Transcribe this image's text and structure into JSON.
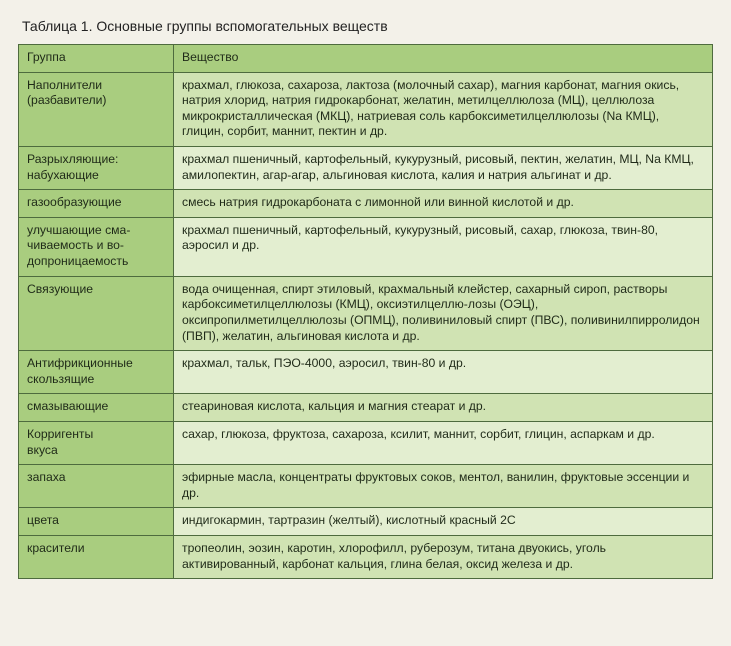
{
  "caption": "Таблица 1. Основные группы вспомогательных веществ",
  "headers": {
    "group": "Группа",
    "substance": "Вещество"
  },
  "rows": {
    "fillers": {
      "group_html": "<span class='lead'>Наполнители</span><span class='sub'>(разбавители)</span>",
      "substance": "крахмал, глюкоза, сахароза, лактоза (молочный сахар), магния карбонат, магния окись, натрия хлорид, натрия гидрокарбонат, желатин, метилцеллюлоза (МЦ), целлюлоза микрокристаллическая (МКЦ), натриевая соль карбоксиметилцеллюлозы (Na КМЦ), глицин, сорбит, маннит, пектин и др."
    },
    "disint_head": {
      "group_html": "<span class='lead'>Разрыхляющие:</span><span class='sub'>набухающие</span>",
      "substance": "крахмал пшеничный, картофельный, кукурузный, рисовый, пектин, желатин, МЦ, Na КМЦ, амилопектин, агар-агар, альгиновая кислота, калия и натрия альгинат и др."
    },
    "disint_gas": {
      "group": "газообразующие",
      "substance": "смесь натрия гидрокарбоната с лимонной или винной кислотой и др."
    },
    "disint_wet": {
      "group_html": "улучшающие сма-<br>чиваемость и во-<br>допроницаемость",
      "substance": "крахмал пшеничный, картофельный, кукурузный, рисовый, сахар, глюкоза, твин-80, аэросил и др."
    },
    "binders": {
      "group": "Связующие",
      "substance": "вода очищенная, спирт этиловый, крахмальный клейстер, сахарный сироп, растворы карбоксиметилцеллюлозы (КМЦ), оксиэтилцеллю-лозы (ОЭЦ), оксипропилметилцеллюлозы (ОПМЦ), поливиниловый спирт (ПВС), поливинилпирролидон (ПВП), желатин, альгиновая кислота и др."
    },
    "antifric_glide": {
      "group_html": "<span class='lead'>Антифрикционные</span><span class='sub'>скользящие</span>",
      "substance": "крахмал, тальк, ПЭО-4000, аэросил, твин-80 и др."
    },
    "antifric_lube": {
      "group": "смазывающие",
      "substance": "стеариновая кислота, кальция и магния стеарат и др."
    },
    "corr_taste": {
      "group_html": "<span class='lead'>Корригенты</span><span class='sub'>вкуса</span>",
      "substance": "сахар, глюкоза, фруктоза, сахароза, ксилит, маннит, сорбит, глицин, аспаркам и др."
    },
    "corr_smell": {
      "group": "запаха",
      "substance": "эфирные масла, концентраты фруктовых соков, ментол, ванилин, фруктовые эссенции и др."
    },
    "corr_color": {
      "group": "цвета",
      "substance": "индигокармин, тартразин (желтый), кислотный красный 2С"
    },
    "dyes": {
      "group": "красители",
      "substance": "тропеолин, эозин, каротин, хлорофилл, руберозум, титана двуокись, уголь активированный, карбонат кальция, глина белая, оксид железа и др."
    }
  }
}
